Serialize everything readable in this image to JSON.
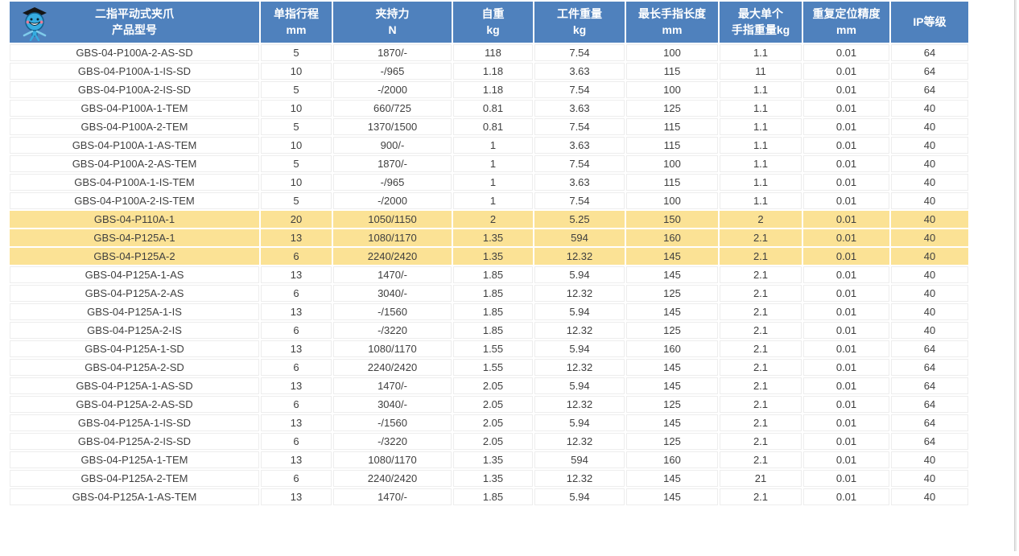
{
  "colors": {
    "header_bg": "#4F81BD",
    "header_text": "#FFFFFF",
    "highlight_row_bg": "#FBE295",
    "row_bg": "#FFFFFF",
    "grid_line": "#EDEDED",
    "body_text": "#3F3F3F"
  },
  "logo": {
    "icon": "mascot-with-graduation-cap"
  },
  "table": {
    "columns": [
      {
        "line1": "二指平动式夹爪",
        "line2": "产品型号"
      },
      {
        "line1": "单指行程",
        "line2": "mm"
      },
      {
        "line1": "夹持力",
        "line2": "N"
      },
      {
        "line1": "自重",
        "line2": "kg"
      },
      {
        "line1": "工件重量",
        "line2": "kg"
      },
      {
        "line1": "最长手指长度",
        "line2": "mm"
      },
      {
        "line1": "最大单个",
        "line2": "手指重量kg"
      },
      {
        "line1": "重复定位精度",
        "line2": "mm"
      },
      {
        "line1": "IP等级",
        "line2": ""
      }
    ],
    "rows": [
      [
        "GBS-04-P100A-2-AS-SD",
        "5",
        "1870/-",
        "118",
        "7.54",
        "100",
        "1.1",
        "0.01",
        "64"
      ],
      [
        "GBS-04-P100A-1-IS-SD",
        "10",
        "-/965",
        "1.18",
        "3.63",
        "115",
        "11",
        "0.01",
        "64"
      ],
      [
        "GBS-04-P100A-2-IS-SD",
        "5",
        "-/2000",
        "1.18",
        "7.54",
        "100",
        "1.1",
        "0.01",
        "64"
      ],
      [
        "GBS-04-P100A-1-TEM",
        "10",
        "660/725",
        "0.81",
        "3.63",
        "125",
        "1.1",
        "0.01",
        "40"
      ],
      [
        "GBS-04-P100A-2-TEM",
        "5",
        "1370/1500",
        "0.81",
        "7.54",
        "115",
        "1.1",
        "0.01",
        "40"
      ],
      [
        "GBS-04-P100A-1-AS-TEM",
        "10",
        "900/-",
        "1",
        "3.63",
        "115",
        "1.1",
        "0.01",
        "40"
      ],
      [
        "GBS-04-P100A-2-AS-TEM",
        "5",
        "1870/-",
        "1",
        "7.54",
        "100",
        "1.1",
        "0.01",
        "40"
      ],
      [
        "GBS-04-P100A-1-IS-TEM",
        "10",
        "-/965",
        "1",
        "3.63",
        "115",
        "1.1",
        "0.01",
        "40"
      ],
      [
        "GBS-04-P100A-2-IS-TEM",
        "5",
        "-/2000",
        "1",
        "7.54",
        "100",
        "1.1",
        "0.01",
        "40"
      ],
      [
        "GBS-04-P110A-1",
        "20",
        "1050/1150",
        "2",
        "5.25",
        "150",
        "2",
        "0.01",
        "40"
      ],
      [
        "GBS-04-P125A-1",
        "13",
        "1080/1170",
        "1.35",
        "594",
        "160",
        "2.1",
        "0.01",
        "40"
      ],
      [
        "GBS-04-P125A-2",
        "6",
        "2240/2420",
        "1.35",
        "12.32",
        "145",
        "2.1",
        "0.01",
        "40"
      ],
      [
        "GBS-04-P125A-1-AS",
        "13",
        "1470/-",
        "1.85",
        "5.94",
        "145",
        "2.1",
        "0.01",
        "40"
      ],
      [
        "GBS-04-P125A-2-AS",
        "6",
        "3040/-",
        "1.85",
        "12.32",
        "125",
        "2.1",
        "0.01",
        "40"
      ],
      [
        "GBS-04-P125A-1-IS",
        "13",
        "-/1560",
        "1.85",
        "5.94",
        "145",
        "2.1",
        "0.01",
        "40"
      ],
      [
        "GBS-04-P125A-2-IS",
        "6",
        "-/3220",
        "1.85",
        "12.32",
        "125",
        "2.1",
        "0.01",
        "40"
      ],
      [
        "GBS-04-P125A-1-SD",
        "13",
        "1080/1170",
        "1.55",
        "5.94",
        "160",
        "2.1",
        "0.01",
        "64"
      ],
      [
        "GBS-04-P125A-2-SD",
        "6",
        "2240/2420",
        "1.55",
        "12.32",
        "145",
        "2.1",
        "0.01",
        "64"
      ],
      [
        "GBS-04-P125A-1-AS-SD",
        "13",
        "1470/-",
        "2.05",
        "5.94",
        "145",
        "2.1",
        "0.01",
        "64"
      ],
      [
        "GBS-04-P125A-2-AS-SD",
        "6",
        "3040/-",
        "2.05",
        "12.32",
        "125",
        "2.1",
        "0.01",
        "64"
      ],
      [
        "GBS-04-P125A-1-IS-SD",
        "13",
        "-/1560",
        "2.05",
        "5.94",
        "145",
        "2.1",
        "0.01",
        "64"
      ],
      [
        "GBS-04-P125A-2-IS-SD",
        "6",
        "-/3220",
        "2.05",
        "12.32",
        "125",
        "2.1",
        "0.01",
        "64"
      ],
      [
        "GBS-04-P125A-1-TEM",
        "13",
        "1080/1170",
        "1.35",
        "594",
        "160",
        "2.1",
        "0.01",
        "40"
      ],
      [
        "GBS-04-P125A-2-TEM",
        "6",
        "2240/2420",
        "1.35",
        "12.32",
        "145",
        "21",
        "0.01",
        "40"
      ],
      [
        "GBS-04-P125A-1-AS-TEM",
        "13",
        "1470/-",
        "1.85",
        "5.94",
        "145",
        "2.1",
        "0.01",
        "40"
      ]
    ],
    "highlighted_rows": [
      10,
      11,
      12
    ]
  }
}
